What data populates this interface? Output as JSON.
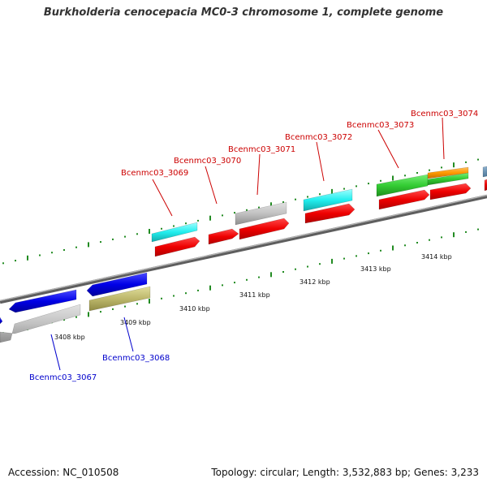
{
  "title": "Burkholderia cenocepacia MC0-3 chromosome 1, complete genome",
  "footer": {
    "accession": "Accession: NC_010508",
    "topology": "Topology: circular; Length: 3,532,883 bp; Genes: 3,233"
  },
  "colors": {
    "top_label": "#cc0000",
    "bottom_label": "#0000cc",
    "backbone": "#8a8a8a",
    "tick": "#228b22"
  },
  "scale_labels": [
    "3408 kbp",
    "3409 kbp",
    "3410 kbp",
    "3411 kbp",
    "3412 kbp",
    "3413 kbp",
    "3414 kbp"
  ],
  "gene_labels_top": [
    "Bcenmc03_3069",
    "Bcenmc03_3070",
    "Bcenmc03_3071",
    "Bcenmc03_3072",
    "Bcenmc03_3073",
    "Bcenmc03_3074"
  ],
  "gene_labels_bottom": [
    "Bcenmc03_3067",
    "Bcenmc03_3068"
  ]
}
